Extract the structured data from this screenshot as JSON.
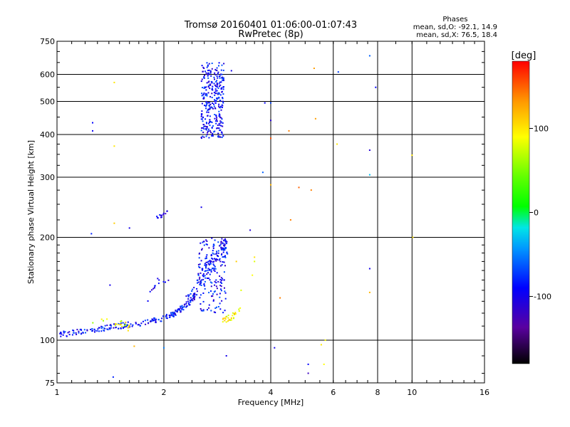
{
  "chart_data": {
    "type": "scatter",
    "title": "Tromsø 20160401 01:06:00-01:07:43",
    "subtitle": "RwPretec (8p)",
    "xlabel": "Frequency [MHz]",
    "ylabel": "Stationary phase Virtual Height [km]",
    "x_scale": "log2",
    "y_scale": "log",
    "xlim": [
      1,
      16
    ],
    "ylim": [
      75,
      750
    ],
    "x_ticks": [
      1,
      2,
      4,
      6,
      8,
      10,
      16
    ],
    "x_tick_labels": [
      "1",
      "2",
      "4",
      "6",
      "8",
      "10",
      "16"
    ],
    "y_ticks": [
      75,
      100,
      200,
      300,
      400,
      500,
      600,
      750
    ],
    "y_tick_labels": [
      "75",
      "100",
      "200",
      "300",
      "400",
      "500",
      "600",
      "750"
    ],
    "grid": true,
    "stats": {
      "header": "Phases",
      "line_o": "mean, sd,O: -92.1, 14.9",
      "line_x": "mean, sd,X:  76.5, 18.4"
    },
    "colorbar": {
      "label": "[deg]",
      "range": [
        -180,
        180
      ],
      "ticks": [
        -100,
        0,
        100
      ],
      "tick_labels": [
        "-100",
        "0",
        "100"
      ]
    },
    "regions": [
      {
        "f": [
          2.55,
          2.95
        ],
        "h": [
          390,
          650
        ],
        "phase": [
          -120,
          -60
        ],
        "n": 300
      },
      {
        "f": [
          2.5,
          3.0
        ],
        "h": [
          120,
          200
        ],
        "phase": [
          -120,
          -60
        ],
        "n": 150
      }
    ],
    "curves": [
      {
        "f": [
          1.0,
          1.2,
          1.4,
          1.6,
          1.8,
          2.0,
          2.15,
          2.3,
          2.45
        ],
        "h": [
          104,
          106,
          109,
          111,
          113,
          116,
          120,
          126,
          135
        ],
        "spread": 0.02,
        "phase": [
          -120,
          -60
        ],
        "n": 220
      },
      {
        "f": [
          2.3,
          2.45,
          2.6,
          2.75,
          2.9,
          3.0
        ],
        "h": [
          128,
          142,
          158,
          170,
          180,
          190
        ],
        "spread": 0.05,
        "phase": [
          -120,
          -60
        ],
        "n": 120
      },
      {
        "f": [
          1.25,
          1.35,
          1.45,
          1.55,
          1.6
        ],
        "h": [
          112,
          114,
          113,
          111,
          108
        ],
        "spread": 0.02,
        "phase": [
          50,
          110
        ],
        "n": 20
      },
      {
        "f": [
          2.9,
          3.0,
          3.1,
          3.2,
          3.3
        ],
        "h": [
          114,
          115,
          117,
          120,
          125
        ],
        "spread": 0.02,
        "phase": [
          60,
          120
        ],
        "n": 30
      },
      {
        "f": [
          1.78,
          1.82,
          1.85,
          1.9,
          2.0,
          2.1
        ],
        "h": [
          130,
          136,
          141,
          146,
          150,
          154
        ],
        "spread": 0.03,
        "phase": [
          -120,
          -80
        ],
        "n": 14
      },
      {
        "f": [
          1.9,
          1.95,
          2.0,
          2.05
        ],
        "h": [
          227,
          229,
          234,
          236
        ],
        "spread": 0.02,
        "phase": [
          -120,
          -80
        ],
        "n": 14
      }
    ],
    "points": [
      [
        1.26,
        433,
        -90
      ],
      [
        1.26,
        410,
        -95
      ],
      [
        1.45,
        568,
        100
      ],
      [
        1.45,
        370,
        100
      ],
      [
        1.45,
        220,
        110
      ],
      [
        1.6,
        213,
        -100
      ],
      [
        1.25,
        205,
        -80
      ],
      [
        1.41,
        145,
        -100
      ],
      [
        1.44,
        78,
        -80
      ],
      [
        1.65,
        96,
        120
      ],
      [
        2.0,
        95,
        -50
      ],
      [
        2.55,
        245,
        -100
      ],
      [
        2.95,
        645,
        -110
      ],
      [
        3.1,
        615,
        -100
      ],
      [
        3.5,
        210,
        -110
      ],
      [
        3.6,
        175,
        100
      ],
      [
        3.6,
        170,
        80
      ],
      [
        3.55,
        155,
        90
      ],
      [
        3.2,
        170,
        110
      ],
      [
        3.3,
        140,
        80
      ],
      [
        3.0,
        90,
        -100
      ],
      [
        3.85,
        495,
        -90
      ],
      [
        4.0,
        495,
        -70
      ],
      [
        4.0,
        390,
        155
      ],
      [
        4.0,
        440,
        -110
      ],
      [
        4.0,
        285,
        120
      ],
      [
        4.1,
        95,
        -100
      ],
      [
        4.25,
        133,
        140
      ],
      [
        4.5,
        410,
        140
      ],
      [
        4.55,
        225,
        140
      ],
      [
        5.1,
        85,
        -90
      ],
      [
        5.1,
        80,
        -120
      ],
      [
        5.65,
        85,
        90
      ],
      [
        5.7,
        100,
        90
      ],
      [
        5.55,
        97,
        100
      ],
      [
        5.3,
        625,
        130
      ],
      [
        5.35,
        445,
        130
      ],
      [
        5.2,
        275,
        140
      ],
      [
        4.8,
        280,
        150
      ],
      [
        6.15,
        375,
        100
      ],
      [
        6.2,
        610,
        -70
      ],
      [
        7.6,
        680,
        -60
      ],
      [
        7.6,
        360,
        -110
      ],
      [
        7.6,
        305,
        -30
      ],
      [
        7.6,
        162,
        -100
      ],
      [
        7.6,
        138,
        120
      ],
      [
        7.9,
        550,
        -90
      ],
      [
        10.0,
        348,
        100
      ],
      [
        10.05,
        200,
        100
      ],
      [
        3.8,
        310,
        -60
      ]
    ]
  }
}
